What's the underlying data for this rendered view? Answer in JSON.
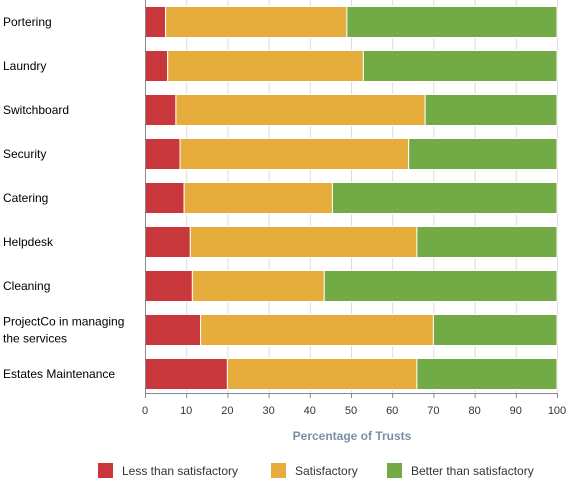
{
  "chart_data": {
    "type": "bar",
    "orientation": "horizontal",
    "stacked": true,
    "categories": [
      [
        "Portering"
      ],
      [
        "Laundry"
      ],
      [
        "Switchboard"
      ],
      [
        "Security"
      ],
      [
        "Catering"
      ],
      [
        "Helpdesk"
      ],
      [
        "Cleaning"
      ],
      [
        "ProjectCo in managing",
        "the services"
      ],
      [
        "Estates Maintenance"
      ]
    ],
    "series": [
      {
        "name": "Less than satisfactory",
        "color": "#c8373c",
        "values": [
          5,
          5.5,
          7.5,
          8.5,
          9.5,
          11,
          11.5,
          13.5,
          20
        ]
      },
      {
        "name": "Satisfactory",
        "color": "#e6ac3c",
        "values": [
          44,
          47.5,
          60.5,
          55.5,
          36,
          55,
          32,
          56.5,
          46
        ]
      },
      {
        "name": "Better than satisfactory",
        "color": "#72aa45",
        "values": [
          51,
          47,
          32,
          36,
          54.5,
          34,
          56.5,
          30,
          34
        ]
      }
    ],
    "xlim": [
      0,
      100
    ],
    "xticks": [
      0,
      10,
      20,
      30,
      40,
      50,
      60,
      70,
      80,
      90,
      100
    ],
    "xlabel": "Percentage of Trusts",
    "grid": true,
    "legend_position": "bottom"
  }
}
